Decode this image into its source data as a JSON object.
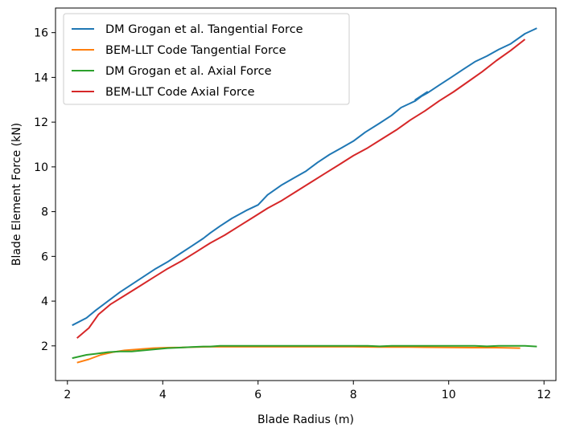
{
  "chart_data": {
    "type": "line",
    "xlabel": "Blade Radius (m)",
    "ylabel": "Blade Element Force (kN)",
    "xlim": [
      1.75,
      12.25
    ],
    "ylim": [
      0.45,
      17.1
    ],
    "xticks": [
      2,
      4,
      6,
      8,
      10,
      12
    ],
    "yticks": [
      2,
      4,
      6,
      8,
      10,
      12,
      14,
      16
    ],
    "xtick_labels": [
      "2",
      "4",
      "6",
      "8",
      "10",
      "12"
    ],
    "ytick_labels": [
      "2",
      "4",
      "6",
      "8",
      "10",
      "12",
      "14",
      "16"
    ],
    "grid": false,
    "legend_position": "top-left",
    "series": [
      {
        "name": "DM Grogan et al. Tangential Force",
        "color": "#1f77b4",
        "x": [
          2.1,
          2.4,
          2.6,
          2.85,
          3.1,
          3.35,
          3.6,
          3.85,
          4.1,
          4.35,
          4.6,
          4.85,
          5.0,
          5.2,
          5.45,
          5.75,
          6.0,
          6.2,
          6.5,
          6.75,
          7.0,
          7.25,
          7.5,
          7.75,
          8.0,
          8.25,
          8.55,
          8.8,
          9.0,
          9.3,
          9.55,
          9.3,
          9.55,
          9.8,
          10.05,
          10.3,
          10.55,
          10.8,
          11.05,
          11.3,
          11.6,
          11.85
        ],
        "y": [
          2.92,
          3.25,
          3.6,
          4.0,
          4.4,
          4.75,
          5.1,
          5.45,
          5.75,
          6.1,
          6.45,
          6.8,
          7.05,
          7.35,
          7.7,
          8.05,
          8.3,
          8.75,
          9.2,
          9.5,
          9.8,
          10.2,
          10.55,
          10.85,
          11.15,
          11.55,
          11.95,
          12.3,
          12.65,
          12.95,
          13.35,
          13.0,
          13.3,
          13.65,
          14.0,
          14.35,
          14.7,
          14.95,
          15.25,
          15.5,
          15.95,
          16.2
        ]
      },
      {
        "name": "BEM-LLT Code Tangential Force",
        "color": "#ff7f0e",
        "x": [
          2.2,
          2.45,
          2.7,
          2.95,
          3.2,
          3.5,
          3.8,
          4.1,
          4.4,
          4.7,
          5.0,
          5.5,
          6.0,
          6.5,
          7.0,
          7.5,
          8.0,
          8.5,
          9.0,
          9.5,
          10.0,
          10.5,
          11.0,
          11.5
        ],
        "y": [
          1.25,
          1.4,
          1.6,
          1.72,
          1.8,
          1.85,
          1.9,
          1.92,
          1.93,
          1.95,
          1.96,
          1.96,
          1.96,
          1.96,
          1.96,
          1.96,
          1.96,
          1.95,
          1.95,
          1.94,
          1.93,
          1.92,
          1.92,
          1.9
        ]
      },
      {
        "name": "DM Grogan et al. Axial Force",
        "color": "#2ca02c",
        "x": [
          2.1,
          2.4,
          2.6,
          2.85,
          3.1,
          3.35,
          3.6,
          3.85,
          4.1,
          4.35,
          4.6,
          4.85,
          5.0,
          5.2,
          5.45,
          5.75,
          6.0,
          6.5,
          7.0,
          7.5,
          8.0,
          8.3,
          8.55,
          8.8,
          9.0,
          9.5,
          10.0,
          10.3,
          10.55,
          10.8,
          11.05,
          11.3,
          11.6,
          11.85
        ],
        "y": [
          1.45,
          1.6,
          1.65,
          1.72,
          1.75,
          1.75,
          1.8,
          1.85,
          1.9,
          1.92,
          1.95,
          1.97,
          1.97,
          2.0,
          2.0,
          2.0,
          2.0,
          2.0,
          2.0,
          2.0,
          2.0,
          2.0,
          1.98,
          2.0,
          2.0,
          2.0,
          2.0,
          2.0,
          2.0,
          1.98,
          2.0,
          2.0,
          2.0,
          1.97
        ]
      },
      {
        "name": "BEM-LLT Code Axial Force",
        "color": "#d62728",
        "x": [
          2.2,
          2.45,
          2.65,
          2.9,
          3.2,
          3.5,
          3.8,
          4.1,
          4.4,
          4.7,
          5.0,
          5.3,
          5.6,
          5.9,
          6.2,
          6.5,
          6.8,
          7.1,
          7.4,
          7.7,
          8.0,
          8.3,
          8.6,
          8.9,
          9.2,
          9.5,
          9.8,
          10.1,
          10.4,
          10.7,
          11.0,
          11.3,
          11.6
        ],
        "y": [
          2.35,
          2.8,
          3.4,
          3.85,
          4.25,
          4.65,
          5.05,
          5.45,
          5.8,
          6.2,
          6.6,
          6.95,
          7.35,
          7.75,
          8.15,
          8.5,
          8.9,
          9.3,
          9.7,
          10.1,
          10.5,
          10.85,
          11.25,
          11.65,
          12.1,
          12.5,
          12.95,
          13.35,
          13.8,
          14.25,
          14.75,
          15.2,
          15.7
        ]
      }
    ]
  }
}
